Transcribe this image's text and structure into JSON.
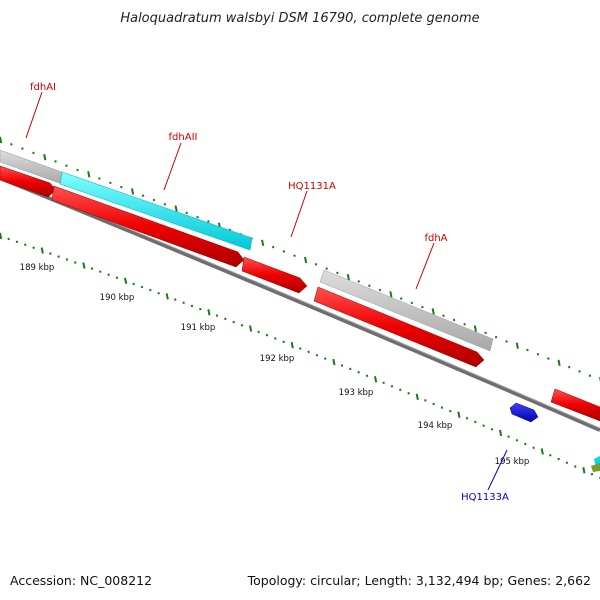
{
  "title": "Haloquadratum walsbyi DSM 16790, complete genome",
  "footer": {
    "accession": "Accession: NC_008212",
    "summary": "Topology: circular; Length: 3,132,494 bp; Genes: 2,662"
  },
  "colors": {
    "cds_red": "#ff0000",
    "gene_gray": "#c0c0c0",
    "rna_cyan": "#00ffff",
    "blue_feature": "#0000ff",
    "tick_green": "#1a7a1a",
    "backbone": "#7a7a7a",
    "label_red": "#cc0000",
    "label_blue": "#0000cc"
  },
  "kbp_labels": [
    "189 kbp",
    "190 kbp",
    "191 kbp",
    "192 kbp",
    "193 kbp",
    "194 kbp",
    "195 kbp"
  ],
  "gene_labels": [
    {
      "name": "fdhAI",
      "color": "red"
    },
    {
      "name": "fdhAII",
      "color": "red"
    },
    {
      "name": "HQ1131A",
      "color": "red"
    },
    {
      "name": "fdhA",
      "color": "red"
    },
    {
      "name": "HQ1133A",
      "color": "blue"
    }
  ]
}
